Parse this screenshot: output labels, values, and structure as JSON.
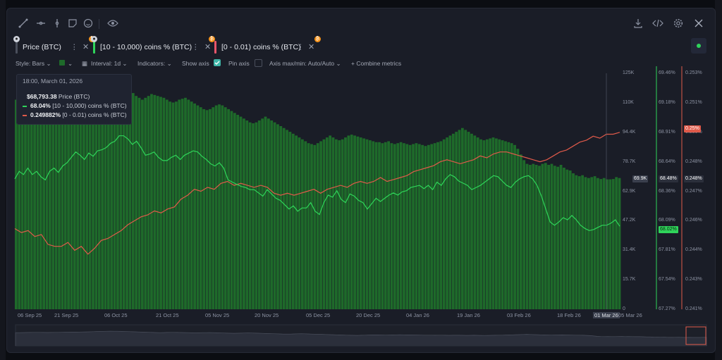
{
  "toolbar": {
    "left_icons": [
      "draw-line-icon",
      "horizontal-line-icon",
      "vertical-line-icon",
      "note-icon",
      "emoji-icon",
      "eye-icon"
    ],
    "right_icons": [
      "download-icon",
      "embed-code-icon",
      "settings-gear-icon",
      "close-icon"
    ]
  },
  "tabs": [
    {
      "label": "Price (BTC)",
      "color": "#4a4f5c"
    },
    {
      "label": "[10 - 10,000) coins % (BTC)",
      "color": "#2fd45a"
    },
    {
      "label": "[0 - 0.01) coins % (BTC)",
      "color": "#e8556a"
    }
  ],
  "settings": {
    "style": "Style: Bars",
    "interval": "Interval: 1d",
    "indicators": "Indicators:",
    "show_axis": "Show axis",
    "pin_axis": "Pin axis",
    "axis_maxmin": "Axis max/min: Auto/Auto",
    "combine": "Combine metrics"
  },
  "tooltip": {
    "date": "18:00, March 01, 2026",
    "price_value": "$68,793.38",
    "price_label": "Price (BTC)",
    "green_value": "68.04%",
    "green_label": "[10 - 10,000) coins % (BTC)",
    "red_value": "0.249882%",
    "red_label": "[0 - 0.01) coins % (BTC)"
  },
  "chart_data": {
    "type": "bar",
    "title": "",
    "x_ticks": [
      "06 Sep 25",
      "21 Sep 25",
      "06 Oct 25",
      "21 Oct 25",
      "05 Nov 25",
      "20 Nov 25",
      "05 Dec 25",
      "20 Dec 25",
      "04 Jan 26",
      "19 Jan 26",
      "03 Feb 26",
      "18 Feb 26",
      "01 Mar 26",
      "05 Mar 26"
    ],
    "axes": {
      "price": {
        "ticks": [
          "125K",
          "110K",
          "94.4K",
          "78.7K",
          "62.9K",
          "47.2K",
          "31.4K",
          "15.7K",
          "0"
        ],
        "ylim": [
          0,
          125000
        ]
      },
      "holders_10_10000": {
        "ticks": [
          "69.46%",
          "69.18%",
          "68.91%",
          "68.64%",
          "68.36%",
          "68.09%",
          "67.81%",
          "67.54%",
          "67.27%"
        ],
        "ylim": [
          67.27,
          69.46
        ]
      },
      "holders_0_001": {
        "ticks": [
          "0.253%",
          "0.251%",
          "0.250%",
          "0.248%",
          "0.247%",
          "0.246%",
          "0.244%",
          "0.243%",
          "0.241%"
        ],
        "ylim": [
          0.241,
          0.253
        ]
      }
    },
    "series": [
      {
        "name": "Price (BTC)",
        "type": "bar",
        "axis": "price",
        "values": [
          111000,
          111500,
          112000,
          112500,
          113000,
          113500,
          114000,
          113500,
          113000,
          112500,
          113000,
          113500,
          114000,
          114500,
          115000,
          115500,
          116000,
          116500,
          117000,
          117500,
          118000,
          119000,
          120000,
          121000,
          122000,
          123000,
          124000,
          124500,
          124000,
          123500,
          122500,
          121500,
          120500,
          119500,
          118500,
          117500,
          116500,
          115500,
          114500,
          113000,
          112000,
          111000,
          112000,
          113000,
          114000,
          113500,
          113000,
          112500,
          112000,
          111000,
          110000,
          109500,
          110000,
          111000,
          111500,
          112000,
          111000,
          110000,
          109000,
          108000,
          107000,
          106000,
          105500,
          106000,
          107000,
          108000,
          108500,
          108000,
          107000,
          106000,
          105000,
          104000,
          103000,
          102000,
          101000,
          100000,
          99000,
          98500,
          99000,
          100000,
          101000,
          102000,
          101000,
          100000,
          99000,
          98000,
          97000,
          96000,
          95000,
          94000,
          93000,
          92000,
          91000,
          90000,
          89000,
          88000,
          87500,
          87000,
          88000,
          89000,
          90000,
          91000,
          92000,
          91000,
          90000,
          89500,
          90000,
          91000,
          92000,
          92500,
          92000,
          91500,
          91000,
          90500,
          90000,
          89500,
          89000,
          88500,
          88500,
          88000,
          88500,
          89000,
          88000,
          87500,
          88000,
          88500,
          88000,
          87500,
          87000,
          87500,
          88000,
          87500,
          87000,
          86500,
          87000,
          87500,
          88000,
          88500,
          89000,
          90000,
          91000,
          92000,
          93000,
          94000,
          95000,
          96000,
          95000,
          94000,
          93000,
          92000,
          91000,
          90000,
          89500,
          90000,
          90500,
          91000,
          90500,
          90000,
          89500,
          89000,
          88500,
          88000,
          87000,
          85000,
          82000,
          79000,
          77000,
          76500,
          77000,
          76500,
          76000,
          77000,
          77500,
          76500,
          77000,
          76000,
          75500,
          76500,
          75000,
          74000,
          73500,
          72000,
          71000,
          70500,
          71000,
          70000,
          69500,
          70000,
          70500,
          69500,
          69000,
          69500,
          68800,
          68793,
          69000,
          70000,
          69500
        ]
      },
      {
        "name": "[10 - 10,000) coins % (BTC)",
        "type": "line",
        "axis": "holders_10_10000",
        "values": [
          68.48,
          68.55,
          68.52,
          68.58,
          68.52,
          68.55,
          68.5,
          68.47,
          68.55,
          68.58,
          68.54,
          68.6,
          68.63,
          68.68,
          68.73,
          68.7,
          68.66,
          68.72,
          68.69,
          68.74,
          68.75,
          68.77,
          68.81,
          68.83,
          68.88,
          68.88,
          68.85,
          68.8,
          68.83,
          68.77,
          68.7,
          68.71,
          68.73,
          68.68,
          68.65,
          68.65,
          68.68,
          68.7,
          68.66,
          68.7,
          68.72,
          68.74,
          68.73,
          68.69,
          68.66,
          68.62,
          68.6,
          68.63,
          68.58,
          68.47,
          68.45,
          68.43,
          68.41,
          68.4,
          68.38,
          68.38,
          68.35,
          68.32,
          68.38,
          68.34,
          68.3,
          68.28,
          68.24,
          68.2,
          68.23,
          68.18,
          68.21,
          68.21,
          68.26,
          68.18,
          68.15,
          68.26,
          68.33,
          68.31,
          68.37,
          68.29,
          68.26,
          68.34,
          68.32,
          68.28,
          68.26,
          68.2,
          68.25,
          68.3,
          68.27,
          68.3,
          68.33,
          68.35,
          68.33,
          68.36,
          68.37,
          68.4,
          68.41,
          68.42,
          68.39,
          68.42,
          68.38,
          68.45,
          68.42,
          68.48,
          68.52,
          68.5,
          68.46,
          68.44,
          68.42,
          68.38,
          68.4,
          68.42,
          68.45,
          68.48,
          68.51,
          68.5,
          68.46,
          68.42,
          68.4,
          68.45,
          68.48,
          68.5,
          68.51,
          68.48,
          68.42,
          68.32,
          68.2,
          68.08,
          68.05,
          68.08,
          68.12,
          68.1,
          68.14,
          68.1,
          68.05,
          68.02,
          68.0,
          68.01,
          68.03,
          68.05,
          68.05,
          68.07,
          68.1,
          68.04
        ]
      },
      {
        "name": "[0 - 0.01) coins % (BTC)",
        "type": "line",
        "axis": "holders_0_001",
        "values": [
          0.2451,
          0.2449,
          0.245,
          0.2447,
          0.2448,
          0.2443,
          0.2442,
          0.2442,
          0.2444,
          0.244,
          0.2442,
          0.2438,
          0.2441,
          0.2445,
          0.2446,
          0.2448,
          0.245,
          0.2453,
          0.2455,
          0.2457,
          0.2458,
          0.246,
          0.2459,
          0.2461,
          0.2462,
          0.2466,
          0.2468,
          0.2471,
          0.247,
          0.2472,
          0.2471,
          0.2474,
          0.2475,
          0.2473,
          0.2474,
          0.2473,
          0.2472,
          0.2473,
          0.2472,
          0.2469,
          0.2468,
          0.2469,
          0.2468,
          0.2469,
          0.247,
          0.2471,
          0.2469,
          0.2471,
          0.2472,
          0.2473,
          0.2472,
          0.2474,
          0.2475,
          0.2474,
          0.2475,
          0.2477,
          0.2475,
          0.2476,
          0.2477,
          0.2478,
          0.248,
          0.2481,
          0.2482,
          0.2483,
          0.2485,
          0.2486,
          0.2485,
          0.2484,
          0.2485,
          0.2486,
          0.2488,
          0.2487,
          0.2489,
          0.249,
          0.249,
          0.2489,
          0.2488,
          0.2487,
          0.2486,
          0.2485,
          0.2486,
          0.2488,
          0.249,
          0.2491,
          0.2493,
          0.2495,
          0.2496,
          0.2498,
          0.2497,
          0.2499,
          0.2499,
          0.25
        ]
      }
    ],
    "price_label": "69.9K",
    "green_label": "68.48%",
    "red_label": "0.248%",
    "green_current": "68.02%",
    "red_current": "0.25%",
    "colors": {
      "bars": "#1e6a2a",
      "green": "#2fd45a",
      "red": "#e05a4a",
      "bg": "#1a1d27"
    },
    "grid": false
  }
}
